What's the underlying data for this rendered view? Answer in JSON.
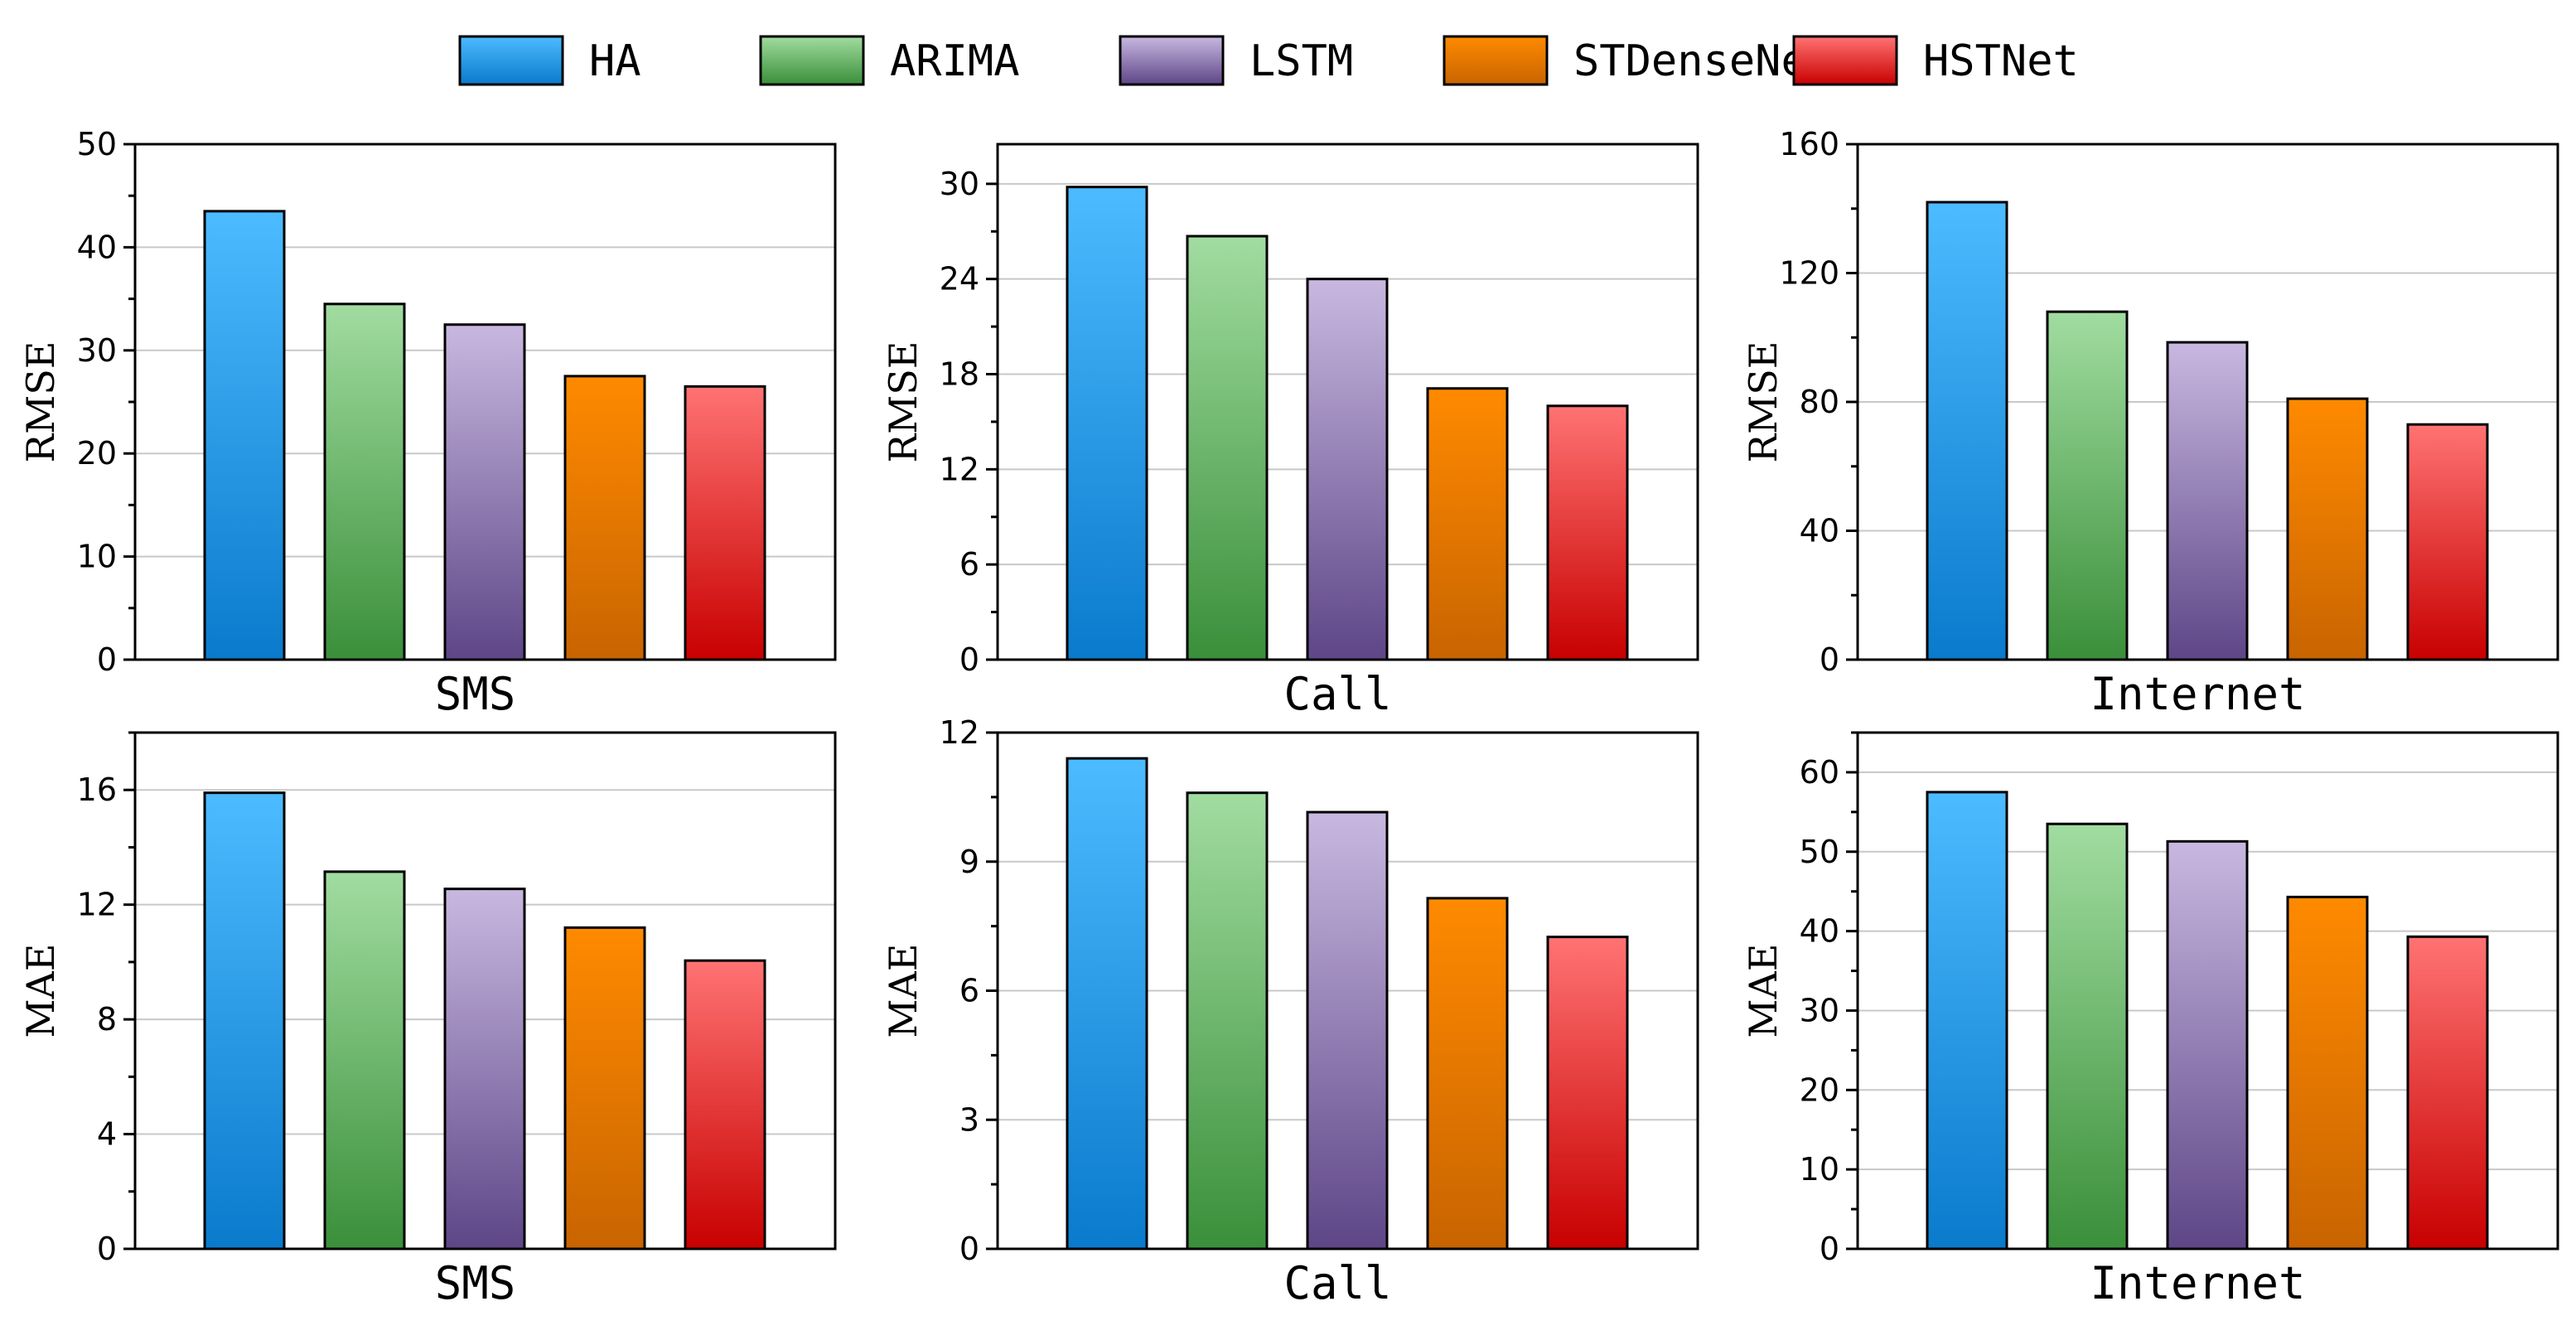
{
  "legend": [
    {
      "name": "HA",
      "top": "#4dbbff",
      "bottom": "#0a7acc"
    },
    {
      "name": "ARIMA",
      "top": "#a1dca0",
      "bottom": "#3a8f3a"
    },
    {
      "name": "LSTM",
      "top": "#c8b8e0",
      "bottom": "#5e4687"
    },
    {
      "name": "STDenseNet",
      "top": "#ff8a00",
      "bottom": "#c86400"
    },
    {
      "name": "HSTNet",
      "top": "#ff7373",
      "bottom": "#c80000"
    }
  ],
  "chart_data": [
    {
      "type": "bar",
      "xlabel": "SMS",
      "ylabel": "RMSE",
      "categories": [
        "HA",
        "ARIMA",
        "LSTM",
        "STDenseNet",
        "HSTNet"
      ],
      "values": [
        43.5,
        34.5,
        32.5,
        27.5,
        26.5
      ],
      "ylim": [
        0,
        50
      ],
      "yticks": [
        0,
        10,
        20,
        30,
        40,
        50
      ],
      "minor_step": 5,
      "grid": true
    },
    {
      "type": "bar",
      "xlabel": "Call",
      "ylabel": "RMSE",
      "categories": [
        "HA",
        "ARIMA",
        "LSTM",
        "STDenseNet",
        "HSTNet"
      ],
      "values": [
        29.8,
        26.7,
        24,
        17.1,
        16
      ],
      "ylim": [
        0,
        32.5
      ],
      "yticks": [
        0,
        6,
        12,
        18,
        24,
        30
      ],
      "minor_step": 3,
      "grid": true
    },
    {
      "type": "bar",
      "xlabel": "Internet",
      "ylabel": "RMSE",
      "categories": [
        "HA",
        "ARIMA",
        "LSTM",
        "STDenseNet",
        "HSTNet"
      ],
      "values": [
        142,
        108,
        98.5,
        81,
        73
      ],
      "ylim": [
        0,
        160
      ],
      "yticks": [
        0,
        40,
        80,
        120,
        160
      ],
      "minor_step": 20,
      "grid": true
    },
    {
      "type": "bar",
      "xlabel": "SMS",
      "ylabel": "MAE",
      "categories": [
        "HA",
        "ARIMA",
        "LSTM",
        "STDenseNet",
        "HSTNet"
      ],
      "values": [
        15.9,
        13.15,
        12.55,
        11.2,
        10.05
      ],
      "ylim": [
        0,
        18
      ],
      "yticks": [
        0,
        4,
        8,
        12,
        16
      ],
      "minor_step": 2,
      "grid": true
    },
    {
      "type": "bar",
      "xlabel": "Call",
      "ylabel": "MAE",
      "categories": [
        "HA",
        "ARIMA",
        "LSTM",
        "STDenseNet",
        "HSTNet"
      ],
      "values": [
        11.4,
        10.6,
        10.15,
        8.15,
        7.25
      ],
      "ylim": [
        0,
        12
      ],
      "yticks": [
        0,
        3,
        6,
        9,
        12
      ],
      "minor_step": 1.5,
      "grid": true
    },
    {
      "type": "bar",
      "xlabel": "Internet",
      "ylabel": "MAE",
      "categories": [
        "HA",
        "ARIMA",
        "LSTM",
        "STDenseNet",
        "HSTNet"
      ],
      "values": [
        57.5,
        53.5,
        51.3,
        44.3,
        39.3
      ],
      "ylim": [
        0,
        65
      ],
      "yticks": [
        0,
        10,
        20,
        30,
        40,
        50,
        60
      ],
      "minor_step": 5,
      "grid": true
    }
  ]
}
